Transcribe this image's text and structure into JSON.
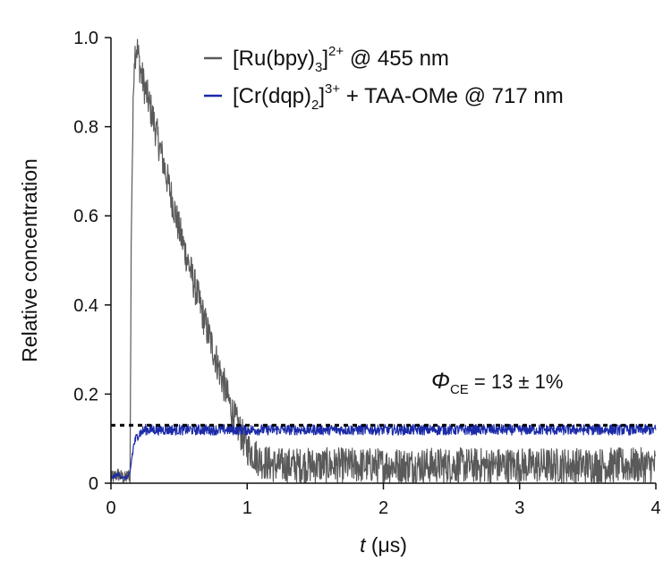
{
  "chart_data": {
    "type": "line",
    "xlabel": {
      "var": "t",
      "unit": " (μs)"
    },
    "ylabel": "Relative concentration",
    "xlim": [
      0,
      4
    ],
    "ylim": [
      0,
      1.0
    ],
    "x_ticks": [
      0,
      1,
      2,
      3,
      4
    ],
    "x_tick_labels": [
      "0",
      "1",
      "2",
      "3",
      "4"
    ],
    "y_ticks": [
      0,
      0.2,
      0.4,
      0.6,
      0.8,
      1.0
    ],
    "y_tick_labels": [
      "0",
      "0.2",
      "0.4",
      "0.6",
      "0.8",
      "1.0"
    ],
    "grid": false,
    "legend_position": "top-right",
    "annotation": {
      "symbol": "Φ",
      "subscript": "CE",
      "text": " = 13 ± 1%"
    },
    "reference_line": {
      "y": 0.13,
      "style": "dotted",
      "color": "#000000"
    },
    "series": [
      {
        "name": "[Ru(bpy)3]2+ @ 455 nm",
        "legend_parts": {
          "pre": "[Ru(bpy)",
          "sub": "3",
          "post": "]",
          "sup": "2+",
          "tail": " @ 455 nm"
        },
        "color": "#5a5a5a",
        "noise_amplitude": 0.04,
        "points": [
          [
            0.0,
            0.01
          ],
          [
            0.05,
            0.02
          ],
          [
            0.1,
            0.01
          ],
          [
            0.14,
            0.02
          ],
          [
            0.15,
            0.6
          ],
          [
            0.17,
            0.96
          ],
          [
            0.19,
            0.98
          ],
          [
            0.22,
            0.92
          ],
          [
            0.3,
            0.83
          ],
          [
            0.4,
            0.7
          ],
          [
            0.5,
            0.57
          ],
          [
            0.6,
            0.46
          ],
          [
            0.7,
            0.35
          ],
          [
            0.8,
            0.25
          ],
          [
            0.9,
            0.15
          ],
          [
            1.0,
            0.08
          ],
          [
            1.1,
            0.05
          ],
          [
            1.2,
            0.04
          ],
          [
            1.5,
            0.04
          ],
          [
            2.0,
            0.04
          ],
          [
            2.5,
            0.04
          ],
          [
            3.0,
            0.04
          ],
          [
            3.5,
            0.04
          ],
          [
            4.0,
            0.04
          ]
        ]
      },
      {
        "name": "[Cr(dqp)2]3+ + TAA-OMe @ 717 nm",
        "legend_parts": {
          "pre": "[Cr(dqp)",
          "sub": "2",
          "post": "]",
          "sup": "3+",
          "tail": " + TAA-OMe @ 717 nm"
        },
        "color": "#1a2aa8",
        "noise_amplitude": 0.012,
        "points": [
          [
            0.0,
            0.01
          ],
          [
            0.05,
            0.02
          ],
          [
            0.1,
            0.01
          ],
          [
            0.14,
            0.02
          ],
          [
            0.15,
            0.05
          ],
          [
            0.17,
            0.09
          ],
          [
            0.2,
            0.11
          ],
          [
            0.25,
            0.12
          ],
          [
            0.3,
            0.12
          ],
          [
            0.5,
            0.12
          ],
          [
            1.0,
            0.12
          ],
          [
            1.5,
            0.12
          ],
          [
            2.0,
            0.12
          ],
          [
            2.5,
            0.12
          ],
          [
            3.0,
            0.12
          ],
          [
            3.5,
            0.12
          ],
          [
            4.0,
            0.12
          ]
        ]
      }
    ]
  }
}
